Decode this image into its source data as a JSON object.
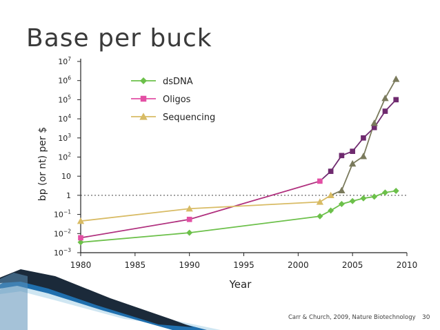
{
  "slide": {
    "title": "Base per buck",
    "citation": "Carr & Church, 2009, Nature Biotechnology",
    "page_number": "30"
  },
  "chart_data": {
    "type": "line",
    "title": "",
    "xlabel": "Year",
    "ylabel": "bp (or nt) per $",
    "y_scale": "log10",
    "xlim": [
      1980,
      2010
    ],
    "ylim_exp": [
      -3,
      7
    ],
    "x_ticks": [
      1980,
      1985,
      1990,
      1995,
      2000,
      2005,
      2010
    ],
    "x_tick_labels": [
      "1980",
      "1985",
      "1990",
      "1995",
      "2000",
      "2005",
      "2010"
    ],
    "y_tick_labels": [
      {
        "exp": 7,
        "base": "10",
        "sup": "7"
      },
      {
        "exp": 6,
        "base": "10",
        "sup": "6"
      },
      {
        "exp": 5,
        "base": "10",
        "sup": "5"
      },
      {
        "exp": 4,
        "base": "10",
        "sup": "4"
      },
      {
        "exp": 3,
        "base": "10",
        "sup": "3"
      },
      {
        "exp": 2,
        "base": "10",
        "sup": "2"
      },
      {
        "exp": 1,
        "base": "10",
        "sup": ""
      },
      {
        "exp": 0,
        "base": "1",
        "sup": ""
      },
      {
        "exp": -1,
        "base": "10",
        "sup": "−1"
      },
      {
        "exp": -2,
        "base": "10",
        "sup": "−2"
      },
      {
        "exp": -3,
        "base": "10",
        "sup": "−3"
      }
    ],
    "reference_line": {
      "y": 1,
      "style": "dotted"
    },
    "legend_position": "top-left",
    "series": [
      {
        "name": "dsDNA",
        "marker": "diamond",
        "color": "#6cc04a",
        "points": [
          [
            1980,
            0.0035
          ],
          [
            1990,
            0.011
          ],
          [
            2002,
            0.08
          ],
          [
            2003,
            0.16
          ],
          [
            2004,
            0.35
          ],
          [
            2005,
            0.5
          ],
          [
            2006,
            0.7
          ],
          [
            2007,
            0.85
          ],
          [
            2008,
            1.4
          ],
          [
            2009,
            1.7
          ]
        ]
      },
      {
        "name": "Oligos",
        "marker": "square",
        "color": "#b0307e",
        "highlight_color": "#e34fa4",
        "points": [
          [
            1980,
            0.006
          ],
          [
            1990,
            0.055
          ],
          [
            2002,
            5.5
          ],
          [
            2003,
            18
          ],
          [
            2004,
            120
          ],
          [
            2005,
            200
          ],
          [
            2006,
            1000
          ],
          [
            2007,
            3500
          ],
          [
            2008,
            25000
          ],
          [
            2009,
            100000
          ]
        ]
      },
      {
        "name": "Sequencing",
        "marker": "triangle",
        "color": "#d8bb64",
        "late_color": "#7a7a5c",
        "points": [
          [
            1980,
            0.045
          ],
          [
            1990,
            0.2
          ],
          [
            2002,
            0.45
          ],
          [
            2003,
            1.0
          ],
          [
            2004,
            1.8
          ],
          [
            2005,
            45
          ],
          [
            2006,
            110
          ],
          [
            2007,
            6000
          ],
          [
            2008,
            120000
          ],
          [
            2009,
            1200000
          ]
        ]
      }
    ]
  }
}
